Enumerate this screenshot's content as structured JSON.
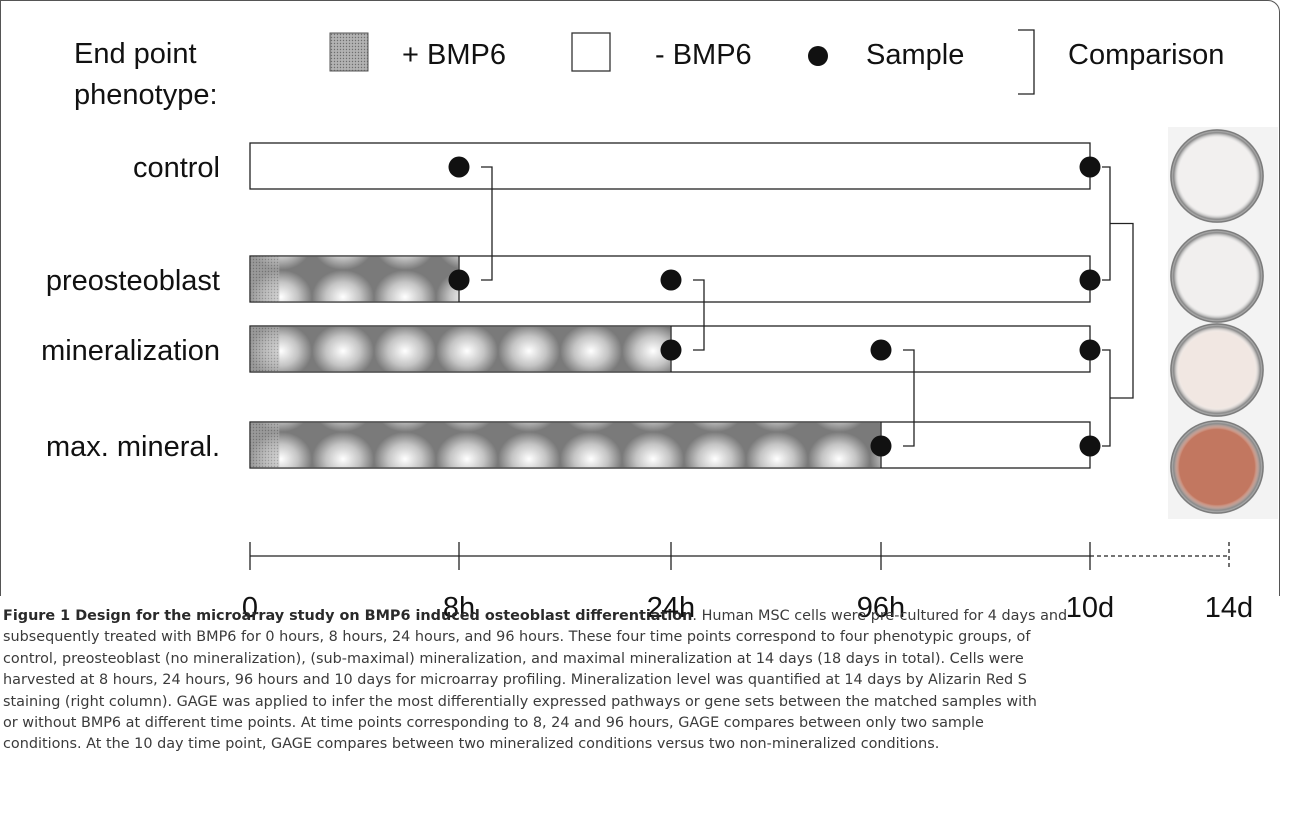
{
  "legend": {
    "title_line1": "End point",
    "title_line2": "phenotype:",
    "bmp_plus": "+ BMP6",
    "bmp_minus": "- BMP6",
    "sample": "Sample",
    "comparison": "Comparison"
  },
  "rows": [
    {
      "label": "control",
      "bmp_end": 0
    },
    {
      "label": "preosteoblast",
      "bmp_end": 1
    },
    {
      "label": "mineralization",
      "bmp_end": 2
    },
    {
      "label": "max. mineral.",
      "bmp_end": 3
    }
  ],
  "time_axis": {
    "ticks": [
      "0",
      "8h",
      "24h",
      "96h",
      "10d",
      "14d"
    ]
  },
  "samples": [
    {
      "row": 0,
      "tick": 1
    },
    {
      "row": 0,
      "tick": 4
    },
    {
      "row": 1,
      "tick": 1
    },
    {
      "row": 1,
      "tick": 2
    },
    {
      "row": 1,
      "tick": 4
    },
    {
      "row": 2,
      "tick": 2
    },
    {
      "row": 2,
      "tick": 3
    },
    {
      "row": 2,
      "tick": 4
    },
    {
      "row": 3,
      "tick": 3
    },
    {
      "row": 3,
      "tick": 4
    }
  ],
  "comparisons": [
    {
      "tick": 1,
      "rows": [
        0,
        1
      ]
    },
    {
      "tick": 2,
      "rows": [
        1,
        2
      ]
    },
    {
      "tick": 3,
      "rows": [
        2,
        3
      ]
    },
    {
      "tick": 4,
      "rows": [
        0,
        1,
        2,
        3
      ],
      "grouped": true
    }
  ],
  "wells": [
    {
      "color": "#f2f0ef"
    },
    {
      "color": "#f1efee"
    },
    {
      "color": "#f1e7e2"
    },
    {
      "color": "#c27760"
    }
  ],
  "caption": {
    "title": "Figure 1 Design for the microarray study on BMP6 induced osteoblast differentiation",
    "line1": ". Human MSC cells were pre-cultured for 4 days and",
    "line2": "subsequently treated with BMP6 for 0 hours, 8 hours, 24 hours, and 96 hours. These four time points correspond to four phenotypic groups, of",
    "line3": "control, preosteoblast (no mineralization), (sub-maximal) mineralization, and maximal mineralization at 14 days (18 days in total). Cells were",
    "line4": "harvested at 8 hours, 24 hours, 96 hours and 10 days for microarray profiling. Mineralization level was quantified at 14 days by Alizarin Red S",
    "line5": "staining (right column). GAGE was applied to infer the most differentially expressed pathways or gene sets between the matched samples with",
    "line6": "or without BMP6 at different time points. At time points corresponding to 8, 24 and 96 hours, GAGE compares between only two sample",
    "line7": "conditions. At the 10 day time point, GAGE compares between two mineralized conditions versus two non-mineralized conditions."
  }
}
